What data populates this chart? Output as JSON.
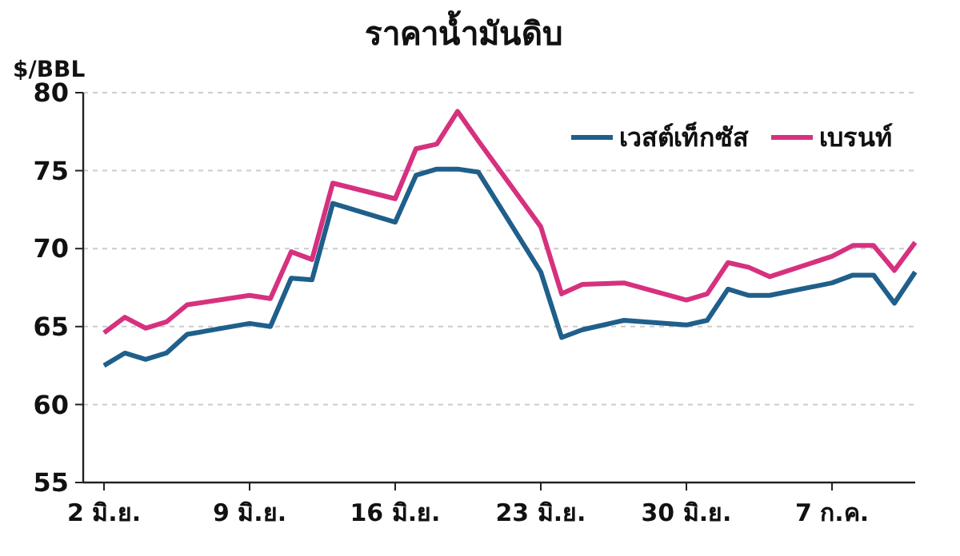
{
  "chart_data": {
    "type": "line",
    "title": "ราคาน้ำมันดิบ",
    "ylabel": "$/BBL",
    "x": [
      "--06-02",
      "--06-03",
      "--06-04",
      "--06-05",
      "--06-06",
      "--06-09",
      "--06-10",
      "--06-11",
      "--06-12",
      "--06-13",
      "--06-16",
      "--06-17",
      "--06-18",
      "--06-19",
      "--06-20",
      "--06-23",
      "--06-24",
      "--06-25",
      "--06-27",
      "--06-30",
      "--07-01",
      "--07-02",
      "--07-03",
      "--07-04",
      "--07-07",
      "--07-08",
      "--07-09",
      "--07-10",
      "--07-11"
    ],
    "series": [
      {
        "name": "เวสต์เท็กซัส",
        "color": "#1f5f8b",
        "values": [
          62.5,
          63.3,
          62.9,
          63.3,
          64.5,
          65.2,
          65.0,
          68.1,
          68.0,
          72.9,
          71.7,
          74.7,
          75.1,
          75.1,
          74.9,
          68.5,
          64.3,
          64.8,
          65.4,
          65.1,
          65.4,
          67.4,
          67.0,
          67.0,
          67.8,
          68.3,
          68.3,
          66.5,
          68.5
        ]
      },
      {
        "name": "เบรนท์",
        "color": "#d6317f",
        "values": [
          64.6,
          65.6,
          64.9,
          65.3,
          66.4,
          67.0,
          66.8,
          69.8,
          69.3,
          74.2,
          73.2,
          76.4,
          76.7,
          78.8,
          76.9,
          71.4,
          67.1,
          67.7,
          67.8,
          66.7,
          67.1,
          69.1,
          68.8,
          68.2,
          69.5,
          70.2,
          70.2,
          68.6,
          70.4
        ]
      }
    ],
    "xlim": [
      "--06-01",
      "--07-11"
    ],
    "xticks": [
      {
        "value": "--06-02",
        "label": "2 มิ.ย."
      },
      {
        "value": "--06-09",
        "label": "9 มิ.ย."
      },
      {
        "value": "--06-16",
        "label": "16 มิ.ย."
      },
      {
        "value": "--06-23",
        "label": "23 มิ.ย."
      },
      {
        "value": "--06-30",
        "label": "30 มิ.ย."
      },
      {
        "value": "--07-07",
        "label": "7 ก.ค."
      }
    ],
    "ylim": [
      55,
      80
    ],
    "yticks": [
      55,
      60,
      65,
      70,
      75,
      80
    ],
    "grid": "y",
    "legend": "top right",
    "marker": "none",
    "line_style": "solid"
  }
}
